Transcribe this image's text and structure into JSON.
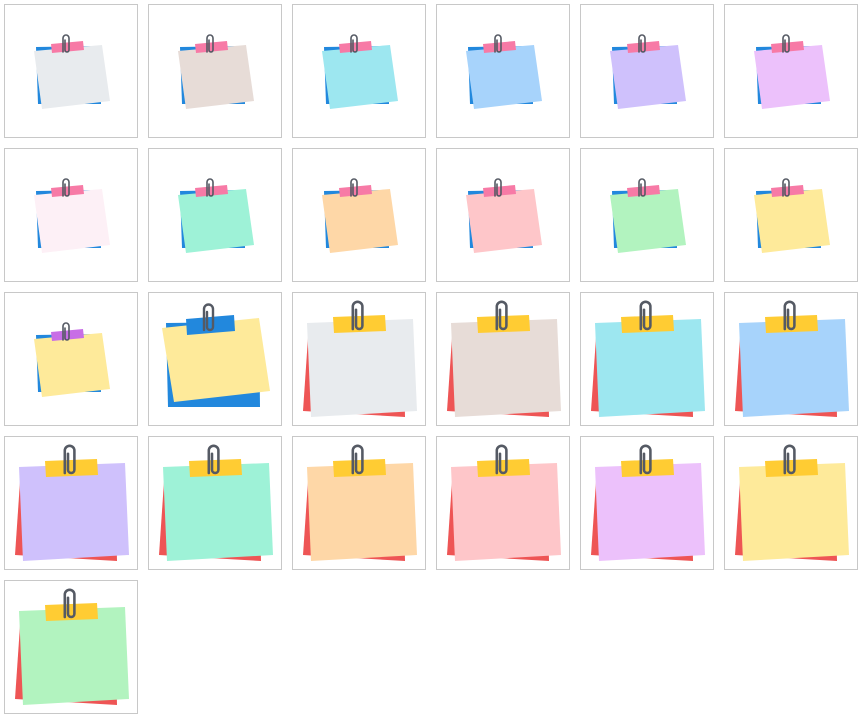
{
  "palette": {
    "blue_back": "#2288dd",
    "red_back": "#ee5555",
    "pink_tape": "#f77aa6",
    "yellow_tape": "#ffcc33",
    "purple_tape": "#c86ee6",
    "blue_tape": "#2288dd",
    "clip": "#555a64"
  },
  "tiles": [
    {
      "icon": "sticky-note-icon",
      "style": "small",
      "back": "#2288dd",
      "note": "#e8ebee",
      "tape": "#f77aa6"
    },
    {
      "icon": "sticky-note-icon",
      "style": "small",
      "back": "#2288dd",
      "note": "#e7dcd7",
      "tape": "#f77aa6"
    },
    {
      "icon": "sticky-note-icon",
      "style": "small",
      "back": "#2288dd",
      "note": "#9de7f0",
      "tape": "#f77aa6"
    },
    {
      "icon": "sticky-note-icon",
      "style": "small",
      "back": "#2288dd",
      "note": "#a7d3fb",
      "tape": "#f77aa6"
    },
    {
      "icon": "sticky-note-icon",
      "style": "small",
      "back": "#2288dd",
      "note": "#cfc1fc",
      "tape": "#f77aa6"
    },
    {
      "icon": "sticky-note-icon",
      "style": "small",
      "back": "#2288dd",
      "note": "#ecc1fb",
      "tape": "#f77aa6"
    },
    {
      "icon": "sticky-note-icon",
      "style": "small",
      "back": "#2288dd",
      "note": "#fdf0f6",
      "tape": "#f77aa6"
    },
    {
      "icon": "sticky-note-icon",
      "style": "small",
      "back": "#2288dd",
      "note": "#9ef2d7",
      "tape": "#f77aa6"
    },
    {
      "icon": "sticky-note-icon",
      "style": "small",
      "back": "#2288dd",
      "note": "#fed7a7",
      "tape": "#f77aa6"
    },
    {
      "icon": "sticky-note-icon",
      "style": "small",
      "back": "#2288dd",
      "note": "#fec6c9",
      "tape": "#f77aa6"
    },
    {
      "icon": "sticky-note-icon",
      "style": "small",
      "back": "#2288dd",
      "note": "#b2f3bf",
      "tape": "#f77aa6"
    },
    {
      "icon": "sticky-note-icon",
      "style": "small",
      "back": "#2288dd",
      "note": "#feea9a",
      "tape": "#f77aa6"
    },
    {
      "icon": "sticky-note-icon",
      "style": "small",
      "back": "#2288dd",
      "note": "#feea9a",
      "tape": "#c86ee6"
    },
    {
      "icon": "sticky-note-icon",
      "style": "big-blue",
      "back": "#2288dd",
      "note": "#feea9a",
      "tape": "#2288dd"
    },
    {
      "icon": "sticky-note-icon",
      "style": "big",
      "back": "#ee5555",
      "note": "#e8ebee",
      "tape": "#ffcc33"
    },
    {
      "icon": "sticky-note-icon",
      "style": "big",
      "back": "#ee5555",
      "note": "#e7dcd7",
      "tape": "#ffcc33"
    },
    {
      "icon": "sticky-note-icon",
      "style": "big",
      "back": "#ee5555",
      "note": "#9de7f0",
      "tape": "#ffcc33"
    },
    {
      "icon": "sticky-note-icon",
      "style": "big",
      "back": "#ee5555",
      "note": "#a7d3fb",
      "tape": "#ffcc33"
    },
    {
      "icon": "sticky-note-icon",
      "style": "big",
      "back": "#ee5555",
      "note": "#cfc1fc",
      "tape": "#ffcc33"
    },
    {
      "icon": "sticky-note-icon",
      "style": "big",
      "back": "#ee5555",
      "note": "#9ef2d7",
      "tape": "#ffcc33"
    },
    {
      "icon": "sticky-note-icon",
      "style": "big",
      "back": "#ee5555",
      "note": "#fed7a7",
      "tape": "#ffcc33"
    },
    {
      "icon": "sticky-note-icon",
      "style": "big",
      "back": "#ee5555",
      "note": "#fec6c9",
      "tape": "#ffcc33"
    },
    {
      "icon": "sticky-note-icon",
      "style": "big",
      "back": "#ee5555",
      "note": "#ecc1fb",
      "tape": "#ffcc33"
    },
    {
      "icon": "sticky-note-icon",
      "style": "big",
      "back": "#ee5555",
      "note": "#feea9a",
      "tape": "#ffcc33"
    },
    {
      "icon": "sticky-note-icon",
      "style": "big",
      "back": "#ee5555",
      "note": "#b2f3bf",
      "tape": "#ffcc33"
    }
  ]
}
